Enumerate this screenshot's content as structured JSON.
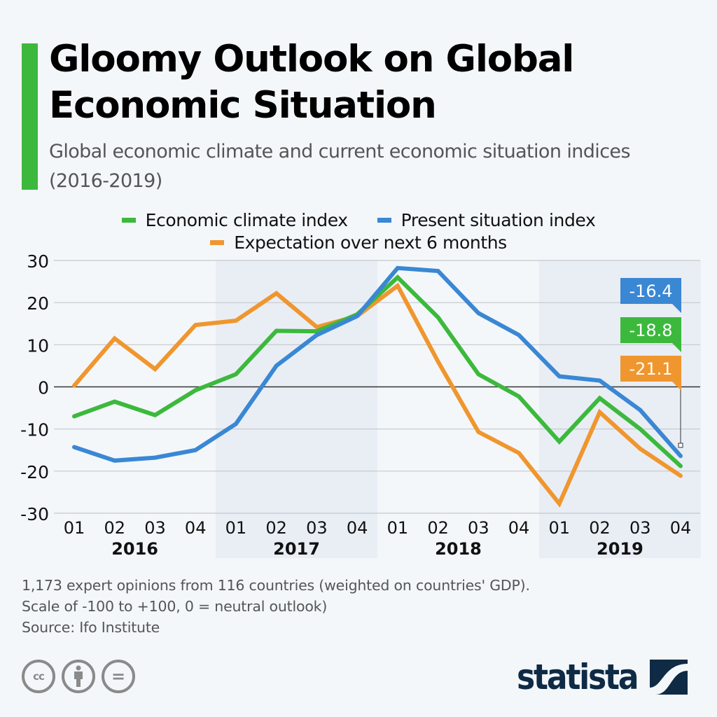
{
  "header": {
    "title_line1": "Gloomy Outlook on Global",
    "title_line2": "Economic Situation",
    "subtitle": "Global economic climate and current economic situation indices (2016-2019)",
    "accent_color": "#3cb93c"
  },
  "legend": [
    {
      "label": "Economic climate index",
      "color": "#3cb93c"
    },
    {
      "label": "Present situation index",
      "color": "#3a87d4"
    },
    {
      "label": "Expectation over next 6 months",
      "color": "#f0962e"
    }
  ],
  "chart_data": {
    "type": "line",
    "title": "Gloomy Outlook on Global Economic Situation",
    "subtitle": "Global economic climate and current economic situation indices (2016-2019)",
    "xlabel": "",
    "ylabel": "",
    "x": [
      "01",
      "02",
      "03",
      "04",
      "01",
      "02",
      "03",
      "04",
      "01",
      "02",
      "03",
      "04",
      "01",
      "02",
      "03",
      "04"
    ],
    "year_groups": [
      {
        "label": "2016",
        "shaded": false
      },
      {
        "label": "2017",
        "shaded": true
      },
      {
        "label": "2018",
        "shaded": false
      },
      {
        "label": "2019",
        "shaded": true
      }
    ],
    "ylim": [
      -30,
      30
    ],
    "yticks": [
      30,
      20,
      10,
      0,
      -10,
      -20,
      -30
    ],
    "grid": true,
    "legend_position": "top-center",
    "series": [
      {
        "name": "Economic climate index",
        "color": "#3cb93c",
        "values": [
          -7.0,
          -3.5,
          -6.7,
          -0.8,
          3.0,
          13.3,
          13.2,
          17.2,
          26.0,
          16.5,
          3.0,
          -2.3,
          -13.0,
          -2.7,
          -10.0,
          -18.8
        ]
      },
      {
        "name": "Present situation index",
        "color": "#3a87d4",
        "values": [
          -14.3,
          -17.5,
          -16.8,
          -15.0,
          -8.8,
          5.0,
          12.3,
          16.8,
          28.2,
          27.5,
          17.5,
          12.3,
          2.5,
          1.5,
          -5.5,
          -16.4
        ]
      },
      {
        "name": "Expectation over next 6 months",
        "color": "#f0962e",
        "values": [
          0.3,
          11.5,
          4.2,
          14.7,
          15.7,
          22.2,
          14.2,
          16.8,
          24.0,
          6.0,
          -10.7,
          -15.7,
          -27.7,
          -6.0,
          -14.7,
          -21.1
        ]
      }
    ],
    "annotations": [
      {
        "series": "Present situation index",
        "text": "-16.4",
        "color": "#3a87d4"
      },
      {
        "series": "Economic climate index",
        "text": "-18.8",
        "color": "#3cb93c"
      },
      {
        "series": "Expectation over next 6 months",
        "text": "-21.1",
        "color": "#f0962e"
      }
    ]
  },
  "footer": {
    "note_line1": "1,173 expert opinions from 116 countries (weighted on countries' GDP).",
    "note_line2": "Scale of -100 to +100, 0 = neutral outlook)",
    "source": "Source: Ifo Institute",
    "license_icons": [
      "cc-icon",
      "attribution-icon",
      "no-derivatives-icon"
    ],
    "license_glyphs": [
      "cc",
      "",
      "="
    ],
    "brand": "statista"
  }
}
